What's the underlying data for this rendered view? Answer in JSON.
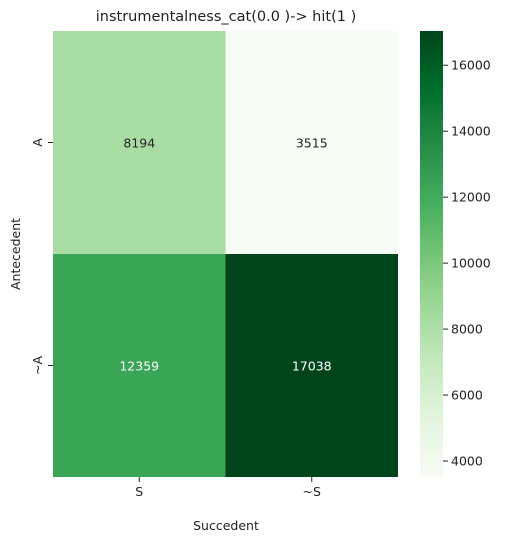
{
  "chart_data": {
    "type": "heatmap",
    "title": "instrumentalness_cat(0.0 )-> hit(1 )",
    "xlabel": "Succedent",
    "ylabel": "Antecedent",
    "x_categories": [
      "S",
      "~S"
    ],
    "y_categories": [
      "A",
      "~A"
    ],
    "values": [
      [
        8194,
        3515
      ],
      [
        12359,
        17038
      ]
    ],
    "colorbar": {
      "range": [
        3515,
        17038
      ],
      "ticks": [
        4000,
        6000,
        8000,
        10000,
        12000,
        14000,
        16000
      ],
      "colormap": "Greens",
      "low_color": "#f7fcf5",
      "high_color": "#00441b"
    }
  }
}
